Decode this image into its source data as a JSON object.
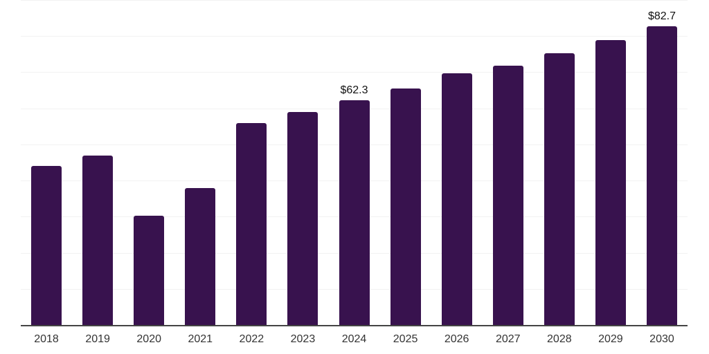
{
  "chart": {
    "background_color": "#ffffff",
    "bar_color": "#38124e",
    "gridline_color": "#f2f2f2",
    "axis_line_color": "#444444",
    "tick_label_color": "#333333",
    "value_label_color": "#111111"
  },
  "chart_data": {
    "type": "bar",
    "categories": [
      "2018",
      "2019",
      "2020",
      "2021",
      "2022",
      "2023",
      "2024",
      "2025",
      "2026",
      "2027",
      "2028",
      "2029",
      "2030"
    ],
    "values": [
      44.1,
      47.0,
      30.3,
      37.9,
      56.0,
      59.0,
      62.3,
      65.5,
      69.8,
      71.8,
      75.3,
      78.9,
      82.7
    ],
    "value_labels": [
      null,
      null,
      null,
      null,
      null,
      null,
      "$62.3",
      null,
      null,
      null,
      null,
      null,
      "$82.7"
    ],
    "title": "",
    "xlabel": "",
    "ylabel": "",
    "ylim": [
      0,
      90
    ],
    "gridline_step": 10,
    "grid": "horizontal",
    "legend": "none",
    "y_axis_tick_labels_visible": false
  }
}
